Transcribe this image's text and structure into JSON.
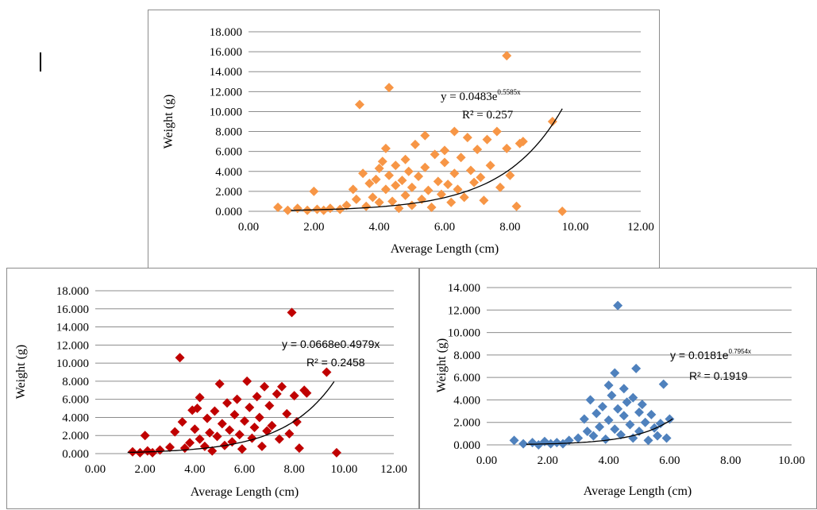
{
  "chart_data": [
    {
      "type": "scatter",
      "xlabel": "Average Length (cm)",
      "ylabel": "Weight (g)",
      "xlim": [
        0,
        12
      ],
      "ylim": [
        0,
        18
      ],
      "x_ticks": [
        "0.00",
        "2.00",
        "4.00",
        "6.00",
        "8.00",
        "10.00",
        "12.00"
      ],
      "y_ticks": [
        "0.000",
        "2.000",
        "4.000",
        "6.000",
        "8.000",
        "10.000",
        "12.000",
        "14.000",
        "16.000",
        "18.000"
      ],
      "grid": true,
      "marker_color": "#f79646",
      "equation_prefix": "y = 0.0483e",
      "equation_exponent": "0.5585x",
      "r2_label": "R² = 0.257",
      "trend": {
        "a": 0.0483,
        "b": 0.5585,
        "x_start": 1.3,
        "x_end": 9.6
      },
      "points": [
        [
          0.9,
          0.4
        ],
        [
          1.2,
          0.1
        ],
        [
          1.5,
          0.3
        ],
        [
          1.8,
          0.1
        ],
        [
          2.0,
          2.0
        ],
        [
          2.1,
          0.2
        ],
        [
          2.3,
          0.1
        ],
        [
          2.5,
          0.3
        ],
        [
          2.8,
          0.2
        ],
        [
          3.0,
          0.6
        ],
        [
          3.2,
          2.2
        ],
        [
          3.3,
          1.2
        ],
        [
          3.4,
          10.7
        ],
        [
          3.5,
          3.8
        ],
        [
          3.6,
          0.5
        ],
        [
          3.7,
          2.8
        ],
        [
          3.8,
          1.4
        ],
        [
          3.9,
          3.2
        ],
        [
          4.0,
          4.3
        ],
        [
          4.0,
          0.9
        ],
        [
          4.1,
          5.0
        ],
        [
          4.2,
          6.3
        ],
        [
          4.2,
          2.2
        ],
        [
          4.3,
          12.4
        ],
        [
          4.3,
          3.6
        ],
        [
          4.4,
          1.0
        ],
        [
          4.5,
          4.6
        ],
        [
          4.5,
          2.6
        ],
        [
          4.6,
          0.3
        ],
        [
          4.7,
          3.1
        ],
        [
          4.8,
          5.2
        ],
        [
          4.8,
          1.6
        ],
        [
          4.9,
          4.0
        ],
        [
          5.0,
          2.4
        ],
        [
          5.0,
          0.6
        ],
        [
          5.1,
          6.7
        ],
        [
          5.2,
          3.5
        ],
        [
          5.3,
          1.2
        ],
        [
          5.4,
          7.6
        ],
        [
          5.4,
          4.4
        ],
        [
          5.5,
          2.1
        ],
        [
          5.6,
          0.4
        ],
        [
          5.7,
          5.7
        ],
        [
          5.8,
          3.0
        ],
        [
          5.9,
          1.7
        ],
        [
          6.0,
          4.9
        ],
        [
          6.0,
          6.1
        ],
        [
          6.1,
          2.7
        ],
        [
          6.2,
          0.9
        ],
        [
          6.3,
          8.0
        ],
        [
          6.3,
          3.8
        ],
        [
          6.4,
          2.2
        ],
        [
          6.5,
          5.4
        ],
        [
          6.6,
          1.4
        ],
        [
          6.7,
          7.4
        ],
        [
          6.8,
          4.1
        ],
        [
          6.9,
          2.9
        ],
        [
          7.0,
          6.2
        ],
        [
          7.1,
          3.4
        ],
        [
          7.2,
          1.1
        ],
        [
          7.3,
          7.2
        ],
        [
          7.4,
          4.6
        ],
        [
          7.6,
          8.0
        ],
        [
          7.7,
          2.4
        ],
        [
          7.9,
          15.6
        ],
        [
          7.9,
          6.3
        ],
        [
          8.0,
          3.6
        ],
        [
          8.2,
          0.5
        ],
        [
          8.3,
          6.8
        ],
        [
          8.4,
          7.0
        ],
        [
          9.3,
          9.0
        ],
        [
          9.6,
          0.0
        ]
      ]
    },
    {
      "type": "scatter",
      "xlabel": "Average Length (cm)",
      "ylabel": "Weight (g)",
      "xlim": [
        0,
        12
      ],
      "ylim": [
        0,
        18
      ],
      "x_ticks": [
        "0.00",
        "2.00",
        "4.00",
        "6.00",
        "8.00",
        "10.00",
        "12.00"
      ],
      "y_ticks": [
        "0.000",
        "2.000",
        "4.000",
        "6.000",
        "8.000",
        "10.000",
        "12.000",
        "14.000",
        "16.000",
        "18.000"
      ],
      "grid": true,
      "marker_color": "#c00000",
      "equation_prefix": "y = 0.0668e0.4979x",
      "equation_exponent": "",
      "r2_label": "R² = 0.2458",
      "trend": {
        "a": 0.0668,
        "b": 0.4979,
        "x_start": 1.3,
        "x_end": 9.6
      },
      "points": [
        [
          1.5,
          0.2
        ],
        [
          1.8,
          0.1
        ],
        [
          2.0,
          2.0
        ],
        [
          2.1,
          0.3
        ],
        [
          2.3,
          0.1
        ],
        [
          2.6,
          0.4
        ],
        [
          3.0,
          0.7
        ],
        [
          3.2,
          2.4
        ],
        [
          3.4,
          10.6
        ],
        [
          3.5,
          3.5
        ],
        [
          3.6,
          0.6
        ],
        [
          3.8,
          1.2
        ],
        [
          3.9,
          4.8
        ],
        [
          4.0,
          2.7
        ],
        [
          4.1,
          5.0
        ],
        [
          4.2,
          6.2
        ],
        [
          4.2,
          1.6
        ],
        [
          4.4,
          0.8
        ],
        [
          4.5,
          3.9
        ],
        [
          4.6,
          2.3
        ],
        [
          4.7,
          0.3
        ],
        [
          4.8,
          4.7
        ],
        [
          4.9,
          1.9
        ],
        [
          5.0,
          7.7
        ],
        [
          5.1,
          3.3
        ],
        [
          5.2,
          0.9
        ],
        [
          5.3,
          5.6
        ],
        [
          5.4,
          2.6
        ],
        [
          5.5,
          1.3
        ],
        [
          5.6,
          4.3
        ],
        [
          5.7,
          6.0
        ],
        [
          5.8,
          2.1
        ],
        [
          5.9,
          0.5
        ],
        [
          6.0,
          3.6
        ],
        [
          6.1,
          8.0
        ],
        [
          6.2,
          5.1
        ],
        [
          6.3,
          1.7
        ],
        [
          6.4,
          2.9
        ],
        [
          6.5,
          6.3
        ],
        [
          6.6,
          4.0
        ],
        [
          6.7,
          0.8
        ],
        [
          6.8,
          7.4
        ],
        [
          6.9,
          2.5
        ],
        [
          7.0,
          5.3
        ],
        [
          7.1,
          3.1
        ],
        [
          7.3,
          6.6
        ],
        [
          7.4,
          1.6
        ],
        [
          7.5,
          7.4
        ],
        [
          7.7,
          4.4
        ],
        [
          7.8,
          2.2
        ],
        [
          7.9,
          15.6
        ],
        [
          8.0,
          6.4
        ],
        [
          8.1,
          3.5
        ],
        [
          8.2,
          0.6
        ],
        [
          8.4,
          7.0
        ],
        [
          8.5,
          6.7
        ],
        [
          9.3,
          9.0
        ],
        [
          9.7,
          0.1
        ]
      ]
    },
    {
      "type": "scatter",
      "xlabel": "Average Length (cm)",
      "ylabel": "Weight (g)",
      "xlim": [
        0,
        10
      ],
      "ylim": [
        0,
        14
      ],
      "x_ticks": [
        "0.00",
        "2.00",
        "4.00",
        "6.00",
        "8.00",
        "10.00"
      ],
      "y_ticks": [
        "0.000",
        "2.000",
        "4.000",
        "6.000",
        "8.000",
        "10.000",
        "12.000",
        "14.000"
      ],
      "grid": true,
      "marker_color": "#4f81bd",
      "equation_prefix": "y = 0.0181e",
      "equation_exponent": "0.7954x",
      "r2_label": "R² = 0.1919",
      "trend": {
        "a": 0.0181,
        "b": 0.7954,
        "x_start": 1.3,
        "x_end": 6.1
      },
      "points": [
        [
          0.9,
          0.4
        ],
        [
          1.2,
          0.1
        ],
        [
          1.5,
          0.2
        ],
        [
          1.7,
          0.0
        ],
        [
          1.9,
          0.3
        ],
        [
          2.1,
          0.1
        ],
        [
          2.3,
          0.2
        ],
        [
          2.5,
          0.1
        ],
        [
          2.7,
          0.4
        ],
        [
          3.0,
          0.6
        ],
        [
          3.2,
          2.3
        ],
        [
          3.3,
          1.2
        ],
        [
          3.4,
          4.0
        ],
        [
          3.5,
          0.8
        ],
        [
          3.6,
          2.8
        ],
        [
          3.7,
          1.6
        ],
        [
          3.8,
          3.4
        ],
        [
          3.9,
          0.5
        ],
        [
          4.0,
          5.3
        ],
        [
          4.0,
          2.2
        ],
        [
          4.1,
          4.4
        ],
        [
          4.2,
          6.4
        ],
        [
          4.2,
          1.4
        ],
        [
          4.3,
          12.4
        ],
        [
          4.3,
          3.2
        ],
        [
          4.4,
          0.9
        ],
        [
          4.5,
          5.0
        ],
        [
          4.5,
          2.6
        ],
        [
          4.6,
          3.8
        ],
        [
          4.7,
          1.8
        ],
        [
          4.8,
          4.2
        ],
        [
          4.8,
          0.6
        ],
        [
          4.9,
          6.8
        ],
        [
          5.0,
          2.9
        ],
        [
          5.0,
          1.2
        ],
        [
          5.1,
          3.6
        ],
        [
          5.2,
          2.0
        ],
        [
          5.3,
          0.4
        ],
        [
          5.4,
          2.7
        ],
        [
          5.5,
          1.5
        ],
        [
          5.6,
          0.8
        ],
        [
          5.7,
          1.9
        ],
        [
          5.8,
          5.4
        ],
        [
          5.9,
          0.6
        ],
        [
          6.0,
          2.3
        ]
      ]
    }
  ]
}
